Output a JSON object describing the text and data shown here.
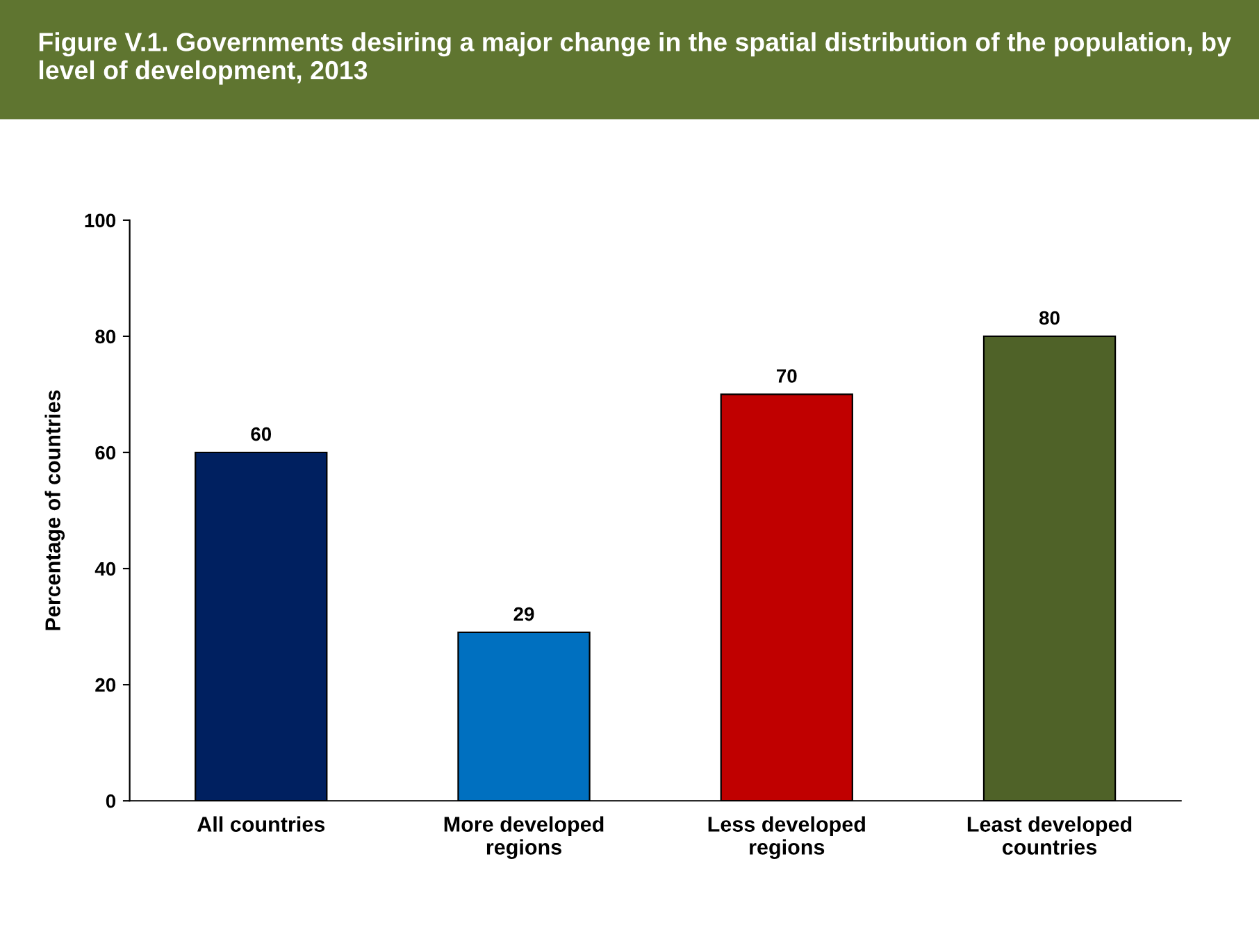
{
  "chart_data": {
    "type": "bar",
    "title": "Figure V.1. Governments desiring a major change in the spatial distribution of the population, by level of development, 2013",
    "ylabel": "Percentage of countries",
    "categories": [
      "All countries",
      "More developed\nregions",
      "Less developed\nregions",
      "Least developed\ncountries"
    ],
    "values": [
      60,
      29,
      70,
      80
    ],
    "colors": [
      "#002060",
      "#0070c0",
      "#c00000",
      "#4f6228"
    ],
    "ylim": [
      0,
      100
    ],
    "yticks": [
      0,
      20,
      40,
      60,
      80,
      100
    ],
    "data_labels": true,
    "grid": false,
    "legend": false
  }
}
